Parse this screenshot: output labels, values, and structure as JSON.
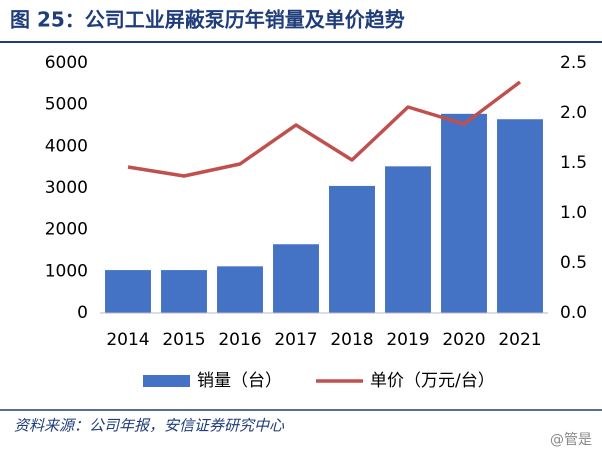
{
  "chart_data": {
    "type": "bar",
    "title": "图 25：公司工业屏蔽泵历年销量及单价趋势",
    "source": "资料来源：公司年报，安信证券研究中心",
    "watermark": "@管是",
    "categories": [
      "2014",
      "2015",
      "2016",
      "2017",
      "2018",
      "2019",
      "2020",
      "2021"
    ],
    "series": [
      {
        "name": "销量（台）",
        "type": "bar",
        "color": "#4472c4",
        "values": [
          1030,
          1030,
          1120,
          1650,
          3050,
          3520,
          4780,
          4650
        ]
      },
      {
        "name": "单价（万元/台）",
        "type": "line",
        "axis": "y2",
        "color": "#c0504d",
        "values": [
          1.46,
          1.37,
          1.49,
          1.88,
          1.53,
          2.06,
          1.89,
          2.31
        ]
      }
    ],
    "ylim": [
      0,
      6000
    ],
    "yticks": [
      0,
      1000,
      2000,
      3000,
      4000,
      5000,
      6000
    ],
    "y2lim": [
      0,
      2.5
    ],
    "y2ticks": [
      {
        "value": 0,
        "label": "0.0"
      },
      0.5,
      {
        "value": 1,
        "label": "1.0"
      },
      1.5,
      {
        "value": 2,
        "label": "2.0"
      },
      2.5
    ],
    "grid": false,
    "legend": "bottom"
  }
}
